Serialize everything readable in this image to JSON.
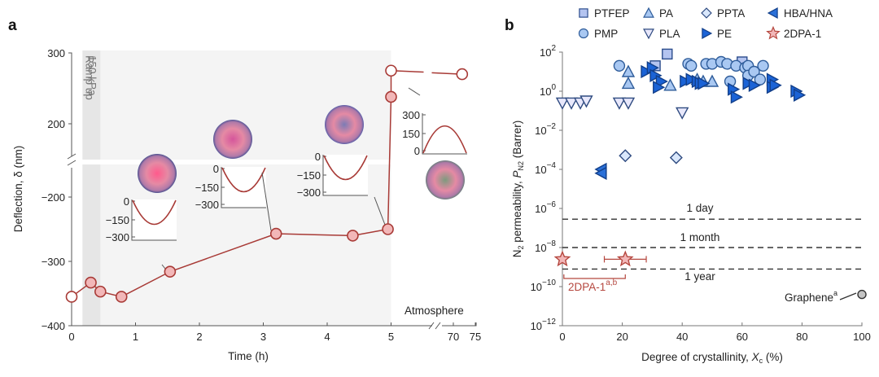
{
  "chart_data": [
    {
      "panel": "a",
      "type": "line",
      "xlabel": "Time (h)",
      "ylabel": "Deflection, δ (nm)",
      "xticks": [
        "0",
        "1",
        "2",
        "3",
        "4",
        "5",
        "70",
        "75"
      ],
      "yticks_lower": [
        "-400",
        "-300",
        "-200"
      ],
      "yticks_upper": [
        "200",
        "300"
      ],
      "xlim": [
        0,
        75
      ],
      "x_break": [
        5.5,
        69
      ],
      "ylim_lower": [
        -400,
        -150
      ],
      "ylim_upper": [
        150,
        300
      ],
      "shaded_regions": [
        {
          "label": "Ramp up",
          "x": [
            0.17,
            0.45
          ]
        },
        {
          "label": "150 kPa",
          "x": [
            0.45,
            5.0
          ]
        }
      ],
      "annotations": [
        "Ramp up",
        "150 kPa",
        "Atmosphere"
      ],
      "series": [
        {
          "name": "deflection",
          "color": "#a83a36",
          "points": [
            {
              "x": 0.0,
              "y": -355,
              "open": true
            },
            {
              "x": 0.3,
              "y": -333,
              "open": false
            },
            {
              "x": 0.45,
              "y": -347,
              "open": false
            },
            {
              "x": 0.78,
              "y": -355,
              "open": false
            },
            {
              "x": 1.54,
              "y": -316,
              "open": false
            },
            {
              "x": 3.2,
              "y": -257,
              "open": false
            },
            {
              "x": 4.4,
              "y": -260,
              "open": false
            },
            {
              "x": 4.95,
              "y": -250,
              "open": false
            },
            {
              "x": 5.0,
              "y": 238,
              "open": false
            },
            {
              "x": 5.0,
              "y": 275,
              "open": true
            },
            {
              "x": 72,
              "y": 270,
              "open": true
            }
          ]
        }
      ],
      "insets": [
        {
          "yticks": [
            "0",
            "-150",
            "-300"
          ],
          "profile": "concave",
          "depth": -310
        },
        {
          "yticks": [
            "0",
            "-150",
            "-300"
          ],
          "profile": "concave",
          "depth": -290
        },
        {
          "yticks": [
            "0",
            "-150",
            "-300"
          ],
          "profile": "concave",
          "depth": -260
        },
        {
          "yticks": [
            "300",
            "150",
            "0"
          ],
          "profile": "convex",
          "depth": 240
        }
      ]
    },
    {
      "panel": "b",
      "type": "scatter",
      "xlabel": "Degree of crystallinity, X_c (%)",
      "ylabel": "N2 permeability, P_N2 (Barrer)",
      "xlim": [
        0,
        100
      ],
      "ylim_log10": [
        -12,
        2
      ],
      "xticks": [
        "0",
        "20",
        "40",
        "60",
        "80",
        "100"
      ],
      "yticks": [
        "10^2",
        "10^0",
        "10^-2",
        "10^-4",
        "10^-6",
        "10^-8",
        "10^-10",
        "10^-12"
      ],
      "legend_position": "top",
      "legend": [
        "PTFEP",
        "PMP",
        "PA",
        "PLA",
        "PPTA",
        "PE",
        "HBA/HNA",
        "2DPA-1"
      ],
      "reference_lines": [
        {
          "label": "1 day",
          "log10_y": -6.55
        },
        {
          "label": "1 month",
          "log10_y": -8.0
        },
        {
          "label": "1 year",
          "log10_y": -9.1
        }
      ],
      "annotations": [
        "2DPA-1",
        "a,b",
        "Graphene",
        "a"
      ],
      "series": [
        {
          "name": "PTFEP",
          "marker": "square",
          "points": [
            [
              31,
              1.3
            ],
            [
              35,
              1.9
            ],
            [
              60,
              1.5
            ]
          ]
        },
        {
          "name": "PMP",
          "marker": "circle",
          "points": [
            [
              19,
              1.3
            ],
            [
              42,
              1.4
            ],
            [
              43,
              1.3
            ],
            [
              48,
              1.4
            ],
            [
              50,
              1.4
            ],
            [
              53,
              1.5
            ],
            [
              55,
              1.4
            ],
            [
              58,
              1.3
            ],
            [
              61,
              1.2
            ],
            [
              62,
              1.3
            ],
            [
              62,
              0.8
            ],
            [
              64,
              1.0
            ],
            [
              66,
              0.6
            ],
            [
              67,
              1.3
            ],
            [
              56,
              0.5
            ]
          ]
        },
        {
          "name": "PA",
          "marker": "triangle-up",
          "points": [
            [
              22,
              1.0
            ],
            [
              22,
              0.4
            ],
            [
              36,
              0.3
            ],
            [
              45,
              0.6
            ],
            [
              47,
              0.5
            ],
            [
              50,
              0.5
            ]
          ]
        },
        {
          "name": "PLA",
          "marker": "triangle-down",
          "points": [
            [
              0,
              -0.6
            ],
            [
              3,
              -0.6
            ],
            [
              6,
              -0.6
            ],
            [
              8,
              -0.5
            ],
            [
              19,
              -0.6
            ],
            [
              22,
              -0.6
            ],
            [
              40,
              -1.1
            ]
          ]
        },
        {
          "name": "PPTA",
          "marker": "diamond",
          "points": [
            [
              21,
              -3.3
            ],
            [
              38,
              -3.4
            ]
          ]
        },
        {
          "name": "PE",
          "marker": "triangle-right",
          "points": [
            [
              28,
              1.0
            ],
            [
              30,
              1.2
            ],
            [
              31,
              0.8
            ],
            [
              33,
              0.5
            ],
            [
              32,
              0.2
            ],
            [
              41,
              0.5
            ],
            [
              43,
              0.6
            ],
            [
              45,
              0.5
            ],
            [
              46,
              0.4
            ],
            [
              47,
              0.4
            ],
            [
              57,
              0.1
            ],
            [
              58,
              -0.3
            ],
            [
              62,
              0.4
            ],
            [
              64,
              0.3
            ],
            [
              70,
              0.6
            ],
            [
              70,
              0.2
            ],
            [
              71,
              0.3
            ],
            [
              78,
              0.0
            ],
            [
              79,
              -0.2
            ]
          ]
        },
        {
          "name": "HBA/HNA",
          "marker": "triangle-left",
          "points": [
            [
              13,
              -4.0
            ],
            [
              13,
              -4.2
            ]
          ]
        },
        {
          "name": "2DPA-1",
          "marker": "star",
          "points": [
            [
              0,
              -8.6
            ],
            [
              21,
              -8.6
            ]
          ],
          "xerr": [
            [
              0,
              0
            ],
            [
              7,
              7
            ]
          ]
        },
        {
          "name": "Graphene",
          "marker": "circle-grey",
          "points": [
            [
              100,
              -10.4
            ]
          ]
        }
      ]
    }
  ]
}
